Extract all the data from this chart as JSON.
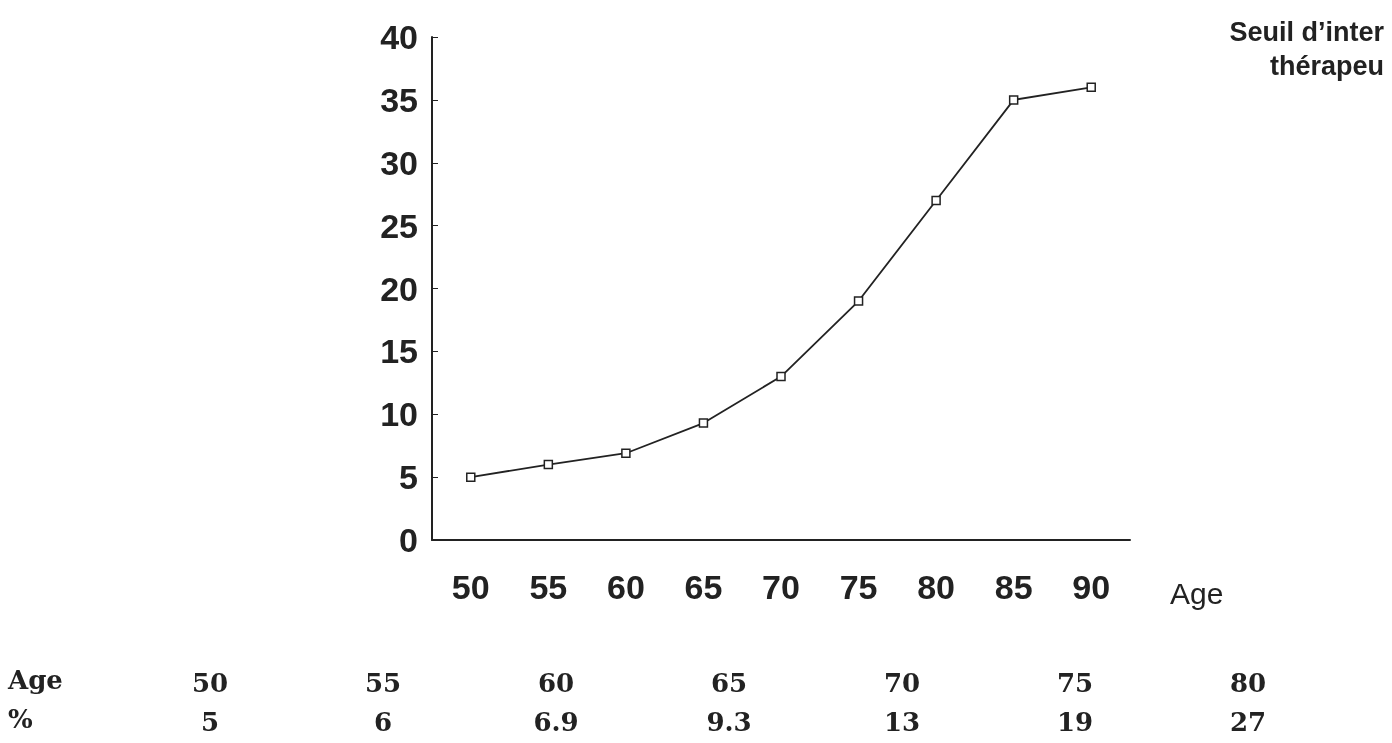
{
  "chart_data": {
    "type": "line",
    "xlabel": "Age",
    "categories": [
      "50",
      "55",
      "60",
      "65",
      "70",
      "75",
      "80",
      "85",
      "90"
    ],
    "series": [
      {
        "color": "#222222",
        "values": [
          5,
          6,
          6.9,
          9.3,
          13,
          19,
          27,
          35,
          36
        ]
      }
    ],
    "ylim": [
      0,
      40
    ],
    "yticks": [
      0,
      5,
      10,
      15,
      20,
      25,
      30,
      35,
      40
    ],
    "grid": false,
    "marker": "square",
    "line_style": "solid",
    "annotations": [
      "Seuil d’inter",
      "thérapeu",
      "Age",
      "%",
      "50",
      "5",
      "55",
      "6",
      "60",
      "6.9",
      "65",
      "9.3",
      "70",
      "13",
      "75",
      "19",
      "80",
      "27"
    ]
  }
}
